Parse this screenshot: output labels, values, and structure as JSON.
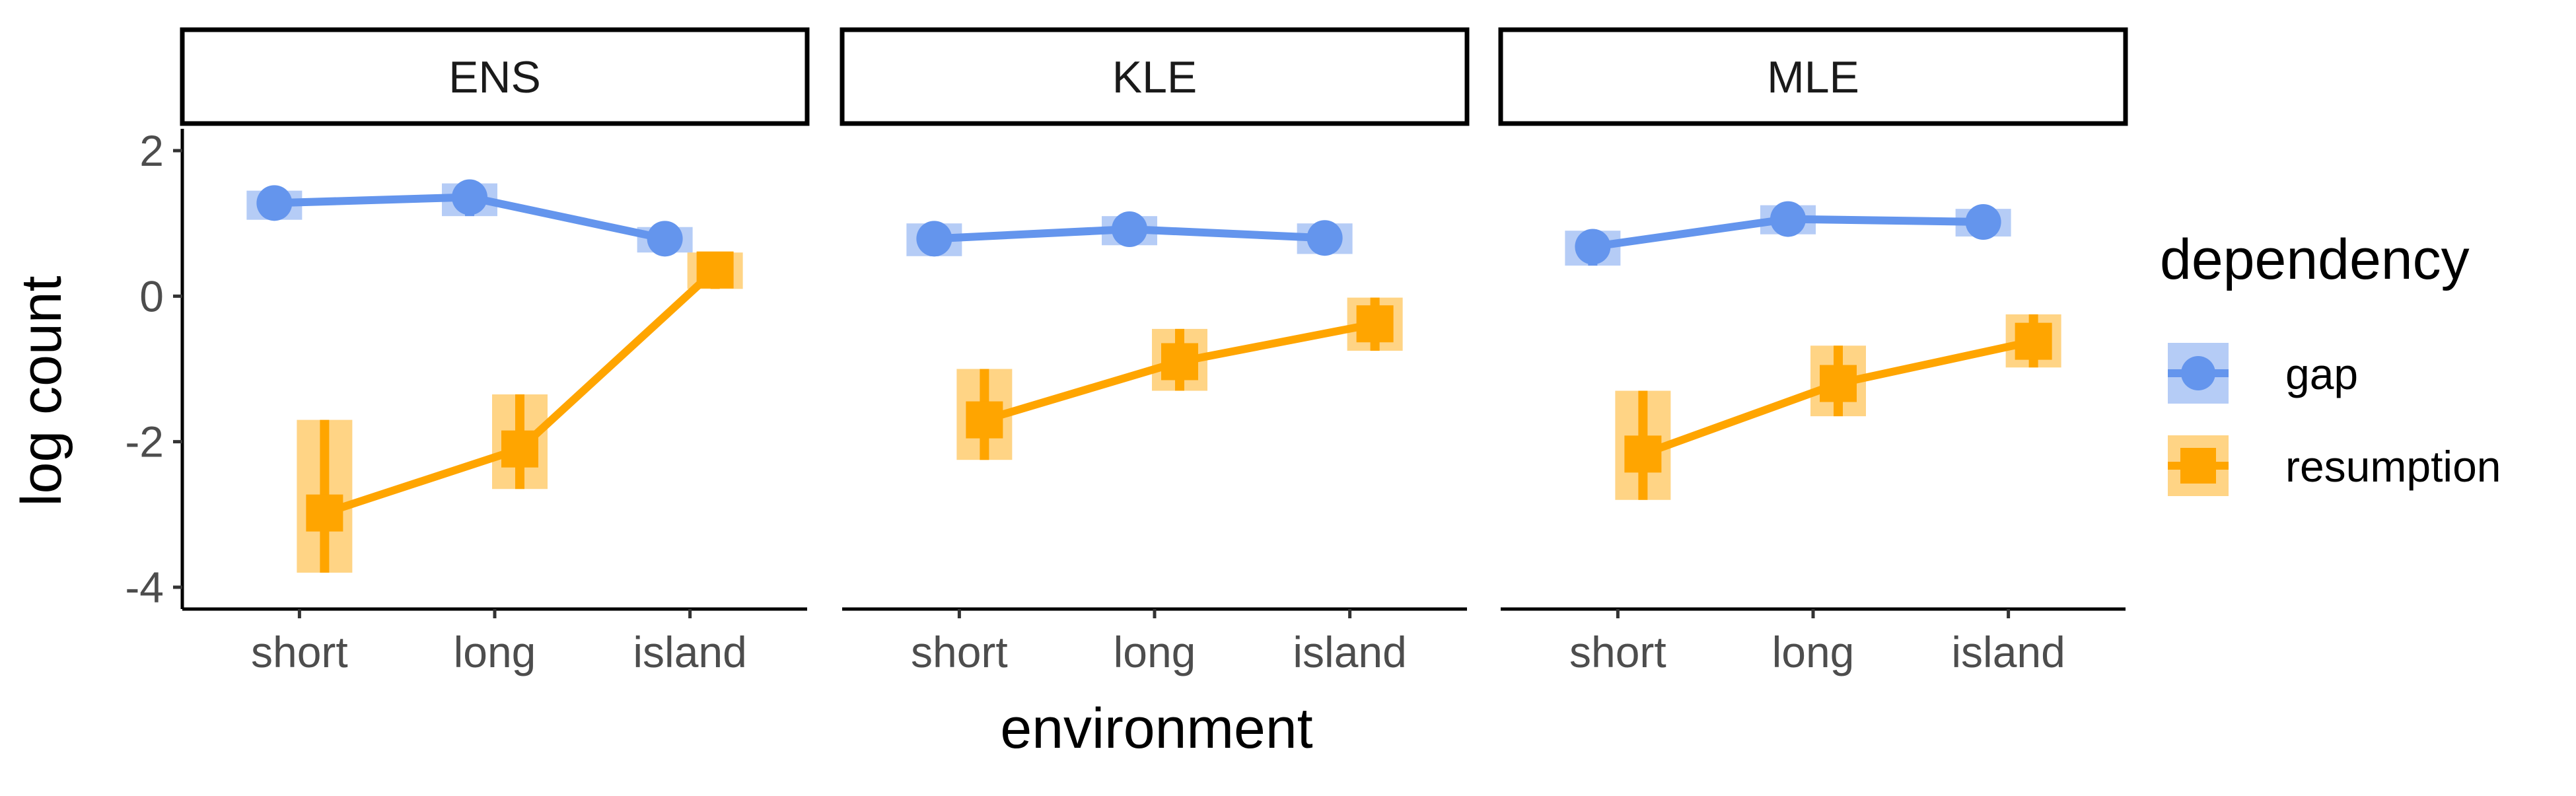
{
  "chart_data": {
    "type": "line",
    "panels": [
      "ENS",
      "KLE",
      "MLE"
    ],
    "categories": [
      "short",
      "long",
      "island"
    ],
    "xlabel": "environment",
    "ylabel": "log count",
    "ylim": [
      -4.3,
      2.3
    ],
    "yticks": [
      2,
      0,
      -2,
      -4
    ],
    "ytick_labels": [
      "2",
      "0",
      "-2",
      "-4"
    ],
    "legend": {
      "title": "dependency",
      "placement": "right"
    },
    "series": [
      {
        "name": "gap",
        "color": "#6495ED",
        "marker": "circle",
        "values": {
          "ENS": [
            1.28,
            1.36,
            0.79
          ],
          "KLE": [
            0.79,
            0.92,
            0.8
          ],
          "MLE": [
            0.68,
            1.06,
            1.02
          ]
        },
        "interval": {
          "ENS": [
            [
              1.05,
              1.45
            ],
            [
              1.1,
              1.55
            ],
            [
              0.6,
              0.95
            ]
          ],
          "KLE": [
            [
              0.55,
              1.0
            ],
            [
              0.7,
              1.1
            ],
            [
              0.58,
              1.0
            ]
          ],
          "MLE": [
            [
              0.42,
              0.9
            ],
            [
              0.85,
              1.25
            ],
            [
              0.82,
              1.2
            ]
          ]
        }
      },
      {
        "name": "resumption",
        "color": "#FFA500",
        "marker": "square",
        "values": {
          "ENS": [
            -2.98,
            -2.1,
            0.36
          ],
          "KLE": [
            -1.7,
            -0.9,
            -0.38
          ],
          "MLE": [
            -2.17,
            -1.2,
            -0.62
          ]
        },
        "interval": {
          "ENS": [
            [
              -3.8,
              -1.7
            ],
            [
              -2.65,
              -1.35
            ],
            [
              0.1,
              0.6
            ]
          ],
          "KLE": [
            [
              -2.25,
              -1.0
            ],
            [
              -1.3,
              -0.45
            ],
            [
              -0.75,
              -0.02
            ]
          ],
          "MLE": [
            [
              -2.8,
              -1.3
            ],
            [
              -1.65,
              -0.68
            ],
            [
              -0.98,
              -0.25
            ]
          ]
        }
      }
    ]
  }
}
